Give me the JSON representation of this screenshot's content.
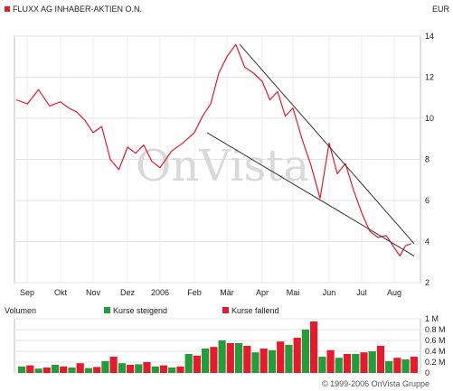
{
  "header": {
    "title": "FLUXX AG INHABER-AKTIEN O.N.",
    "currency": "EUR",
    "title_marker_color": "#e8192c"
  },
  "watermark": "OnVista",
  "footer": {
    "copyright": "© 1999-2006 OnVista Gruppe"
  },
  "legend": {
    "volume_label": "Volumen",
    "rising_label": "Kurse steigend",
    "falling_label": "Kurse fallend",
    "rising_color": "#1f9e3a",
    "falling_color": "#e8192c"
  },
  "chart_data": [
    {
      "type": "line",
      "title": "FLUXX AG INHABER-AKTIEN O.N.",
      "ylabel": "EUR",
      "ylim": [
        2,
        14
      ],
      "y_ticks": [
        "2",
        "4",
        "6",
        "8",
        "10",
        "12",
        "14"
      ],
      "x_ticks": [
        "Sep",
        "Okt",
        "Nov",
        "Dez",
        "2006",
        "Feb",
        "Mär",
        "Apr",
        "Mai",
        "Jun",
        "Jul",
        "Aug"
      ],
      "grid": true,
      "series": [
        {
          "color": "#e8192c",
          "points": [
            [
              "Sep",
              10.9
            ],
            [
              "Sep",
              10.7
            ],
            [
              "Sep",
              11.4
            ],
            [
              "Sep",
              10.6
            ],
            [
              "Okt",
              10.8
            ],
            [
              "Okt",
              10.5
            ],
            [
              "Okt",
              10.3
            ],
            [
              "Okt",
              9.9
            ],
            [
              "Nov",
              9.3
            ],
            [
              "Nov",
              9.6
            ],
            [
              "Nov",
              8.0
            ],
            [
              "Nov",
              7.5
            ],
            [
              "Dez",
              8.6
            ],
            [
              "Dez",
              8.3
            ],
            [
              "Dez",
              8.7
            ],
            [
              "Dez",
              7.9
            ],
            [
              "2006",
              7.6
            ],
            [
              "2006",
              8.4
            ],
            [
              "2006",
              8.8
            ],
            [
              "Feb",
              9.3
            ],
            [
              "Feb",
              10.1
            ],
            [
              "Feb",
              10.7
            ],
            [
              "Feb",
              12.2
            ],
            [
              "Mär",
              13.0
            ],
            [
              "Mär",
              13.6
            ],
            [
              "Mär",
              12.5
            ],
            [
              "Mär",
              12.2
            ],
            [
              "Apr",
              11.8
            ],
            [
              "Apr",
              10.9
            ],
            [
              "Apr",
              11.3
            ],
            [
              "Apr",
              10.1
            ],
            [
              "Mai",
              10.5
            ],
            [
              "Mai",
              9.0
            ],
            [
              "Mai",
              7.7
            ],
            [
              "Mai",
              6.1
            ],
            [
              "Jun",
              8.8
            ],
            [
              "Jun",
              7.3
            ],
            [
              "Jun",
              7.8
            ],
            [
              "Jun",
              6.5
            ],
            [
              "Jul",
              5.4
            ],
            [
              "Jul",
              4.5
            ],
            [
              "Jul",
              4.2
            ],
            [
              "Jul",
              4.3
            ],
            [
              "Aug",
              3.7
            ],
            [
              "Aug",
              3.3
            ],
            [
              "Aug",
              3.8
            ],
            [
              "Aug",
              3.9
            ]
          ]
        }
      ],
      "trendlines": [
        {
          "from": [
            "Mär",
            13.6
          ],
          "to": [
            "Aug",
            3.9
          ]
        },
        {
          "from": [
            "Feb",
            9.3
          ],
          "to": [
            "Aug",
            3.3
          ]
        }
      ]
    },
    {
      "type": "bar",
      "title": "Volumen",
      "ylim": [
        0,
        1
      ],
      "y_ticks": [
        "0",
        "0.2 M",
        "0.4 M",
        "0.6 M",
        "0.8 M",
        "1 M"
      ],
      "x_ticks": [
        "Sep",
        "Okt",
        "Nov",
        "Dez",
        "2006",
        "Feb",
        "Mär",
        "Apr",
        "Mai",
        "Jun",
        "Jul",
        "Aug"
      ],
      "series": [
        {
          "name": "Kurse steigend",
          "color": "#1f9e3a",
          "values": [
            0.12,
            0.08,
            0.15,
            0.1,
            0.09,
            0.22,
            0.18,
            0.16,
            0.12,
            0.1,
            0.35,
            0.45,
            0.6,
            0.55,
            0.38,
            0.42,
            0.52,
            0.8,
            0.3,
            0.28,
            0.35,
            0.4,
            0.22,
            0.25
          ]
        },
        {
          "name": "Kurse fallend",
          "color": "#e8192c",
          "values": [
            0.14,
            0.1,
            0.12,
            0.18,
            0.11,
            0.3,
            0.15,
            0.2,
            0.14,
            0.12,
            0.32,
            0.48,
            0.55,
            0.5,
            0.45,
            0.58,
            0.65,
            0.95,
            0.42,
            0.35,
            0.38,
            0.5,
            0.28,
            0.3
          ]
        }
      ]
    }
  ]
}
